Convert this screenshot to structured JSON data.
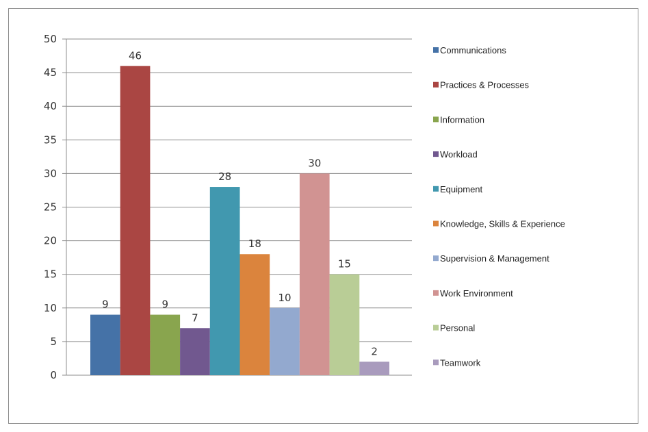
{
  "chart_data": {
    "type": "bar",
    "title": "",
    "xlabel": "",
    "ylabel": "",
    "ylim": [
      0,
      50
    ],
    "ytick_step": 5,
    "grid": true,
    "legend_position": "right",
    "series": [
      {
        "name": "Communications",
        "value": 9,
        "color": "#4572a7"
      },
      {
        "name": "Practices & Processes",
        "value": 46,
        "color": "#aa4643"
      },
      {
        "name": "Information",
        "value": 9,
        "color": "#89a54e"
      },
      {
        "name": "Workload",
        "value": 7,
        "color": "#71588f"
      },
      {
        "name": "Equipment",
        "value": 28,
        "color": "#4198af"
      },
      {
        "name": "Knowledge, Skills & Experience",
        "value": 18,
        "color": "#db843d"
      },
      {
        "name": "Supervision & Management",
        "value": 10,
        "color": "#93a9cf"
      },
      {
        "name": "Work Environment",
        "value": 30,
        "color": "#d19392"
      },
      {
        "name": "Personal",
        "value": 15,
        "color": "#b9cd96"
      },
      {
        "name": "Teamwork",
        "value": 2,
        "color": "#a99bbd"
      }
    ]
  }
}
